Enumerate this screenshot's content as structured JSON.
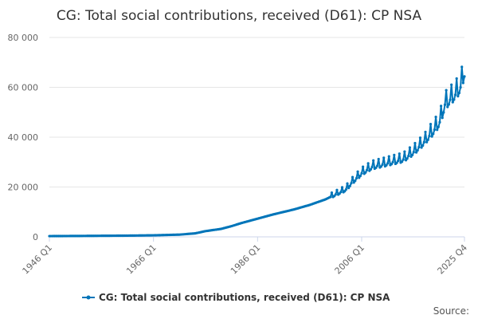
{
  "chart_data": {
    "type": "line",
    "title": "CG: Total social contributions, received (D61): CP NSA",
    "xlabel": "",
    "ylabel": "",
    "x_tick_labels": [
      "1946 Q1",
      "1966 Q1",
      "1986 Q1",
      "2006 Q1",
      "2025 Q4"
    ],
    "y_tick_labels": [
      "0",
      "20 000",
      "40 000",
      "60 000",
      "80 000"
    ],
    "ylim": [
      0,
      80000
    ],
    "x_range": [
      "1946 Q1",
      "2025 Q4"
    ],
    "grid": true,
    "legend_position": "bottom-center",
    "source_label": "Source:",
    "series": [
      {
        "name": "CG: Total social contributions, received (D61): CP NSA",
        "color": "#0075b9",
        "trend_points": [
          {
            "x": "1946 Q1",
            "y": 300
          },
          {
            "x": "1951 Q1",
            "y": 360
          },
          {
            "x": "1956 Q1",
            "y": 430
          },
          {
            "x": "1961 Q1",
            "y": 500
          },
          {
            "x": "1966 Q1",
            "y": 620
          },
          {
            "x": "1971 Q1",
            "y": 900
          },
          {
            "x": "1974 Q1",
            "y": 1400
          },
          {
            "x": "1976 Q1",
            "y": 2300
          },
          {
            "x": "1979 Q1",
            "y": 3200
          },
          {
            "x": "1981 Q1",
            "y": 4300
          },
          {
            "x": "1983 Q1",
            "y": 5600
          },
          {
            "x": "1986 Q1",
            "y": 7300
          },
          {
            "x": "1989 Q1",
            "y": 9000
          },
          {
            "x": "1991 Q1",
            "y": 10000
          },
          {
            "x": "1993 Q1",
            "y": 11000
          },
          {
            "x": "1996 Q1",
            "y": 12800
          },
          {
            "x": "1999 Q1",
            "y": 15000
          },
          {
            "x": "2001 Q1",
            "y": 17000
          },
          {
            "x": "2003 Q1",
            "y": 19000
          },
          {
            "x": "2004 Q1",
            "y": 21500
          },
          {
            "x": "2006 Q1",
            "y": 25500
          },
          {
            "x": "2008 Q1",
            "y": 28000
          },
          {
            "x": "2011 Q1",
            "y": 29500
          },
          {
            "x": "2014 Q1",
            "y": 31000
          },
          {
            "x": "2016 Q1",
            "y": 34000
          },
          {
            "x": "2018 Q1",
            "y": 38000
          },
          {
            "x": "2020 Q1",
            "y": 43000
          },
          {
            "x": "2021 Q1",
            "y": 46000
          },
          {
            "x": "2022 Q1",
            "y": 53000
          },
          {
            "x": "2023 Q1",
            "y": 55000
          },
          {
            "x": "2024 Q1",
            "y": 57000
          },
          {
            "x": "2025 Q1",
            "y": 60000
          },
          {
            "x": "2025 Q4",
            "y": 66000
          }
        ]
      }
    ]
  }
}
